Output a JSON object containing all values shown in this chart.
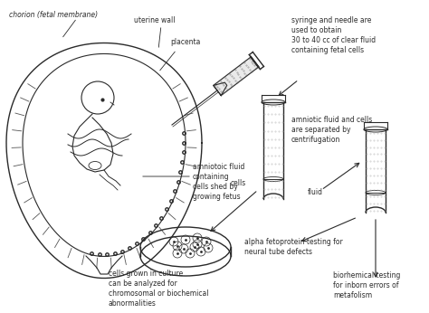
{
  "bg_color": "#ffffff",
  "line_color": "#2a2a2a",
  "annotations": {
    "chorion": "chorion (fetal membrane)",
    "uterine": "uterine wall",
    "placenta": "placenta",
    "amniotic": "amniotoic fluid\ncontaining\ncells shed by\ngrowing fetus",
    "syringe_label": "syringe and needle are\nused to obtain\n30 to 40 cc of clear fluid\ncontaining fetal cells",
    "centrifuge": "amniotic fluid and cells\nare separated by\ncentrifugation",
    "fluid": "fluid",
    "cells": "cells",
    "petri": "cells grown in culture\ncan be analyzed for\nchromosomal or biochemical\nabnormalities",
    "alpha": "alpha fetoprotein testing for\nneural tube defects",
    "biochem": "biorhemical testing\nfor inborn errors of\nmetafolism"
  }
}
